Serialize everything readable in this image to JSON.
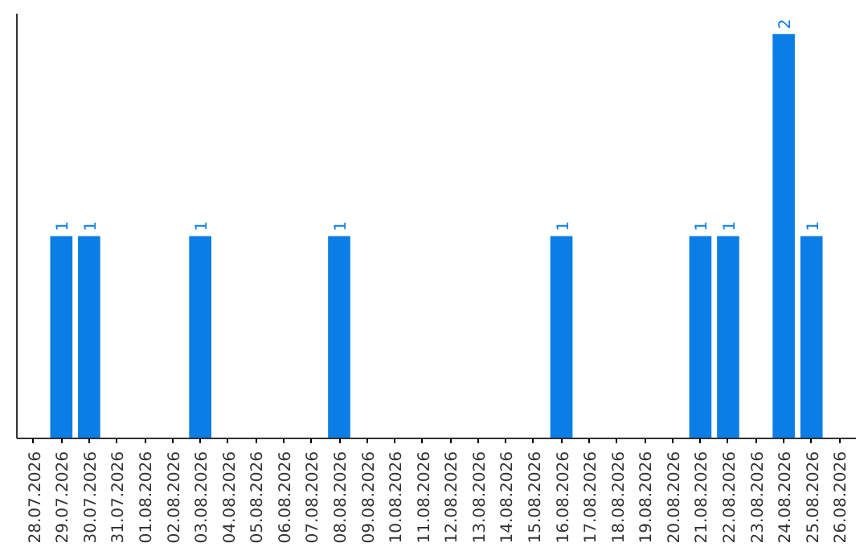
{
  "chart_data": {
    "type": "bar",
    "categories": [
      "28.07.2026",
      "29.07.2026",
      "30.07.2026",
      "31.07.2026",
      "01.08.2026",
      "02.08.2026",
      "03.08.2026",
      "04.08.2026",
      "05.08.2026",
      "06.08.2026",
      "07.08.2026",
      "08.08.2026",
      "09.08.2026",
      "10.08.2026",
      "11.08.2026",
      "12.08.2026",
      "13.08.2026",
      "14.08.2026",
      "15.08.2026",
      "16.08.2026",
      "17.08.2026",
      "18.08.2026",
      "19.08.2026",
      "20.08.2026",
      "21.08.2026",
      "22.08.2026",
      "23.08.2026",
      "24.08.2026",
      "25.08.2026",
      "26.08.2026"
    ],
    "values": [
      0,
      1,
      1,
      0,
      0,
      0,
      1,
      0,
      0,
      0,
      0,
      1,
      0,
      0,
      0,
      0,
      0,
      0,
      0,
      1,
      0,
      0,
      0,
      0,
      1,
      1,
      0,
      2,
      1,
      0
    ],
    "value_labels": [
      null,
      "1",
      "1",
      null,
      null,
      null,
      "1",
      null,
      null,
      null,
      null,
      "1",
      null,
      null,
      null,
      null,
      null,
      null,
      null,
      "1",
      null,
      null,
      null,
      null,
      "1",
      "1",
      null,
      "2",
      "1",
      null
    ],
    "color": "#0a7ee6",
    "ylim": [
      0,
      2.1
    ],
    "tick_labels": "x",
    "grid": false
  }
}
